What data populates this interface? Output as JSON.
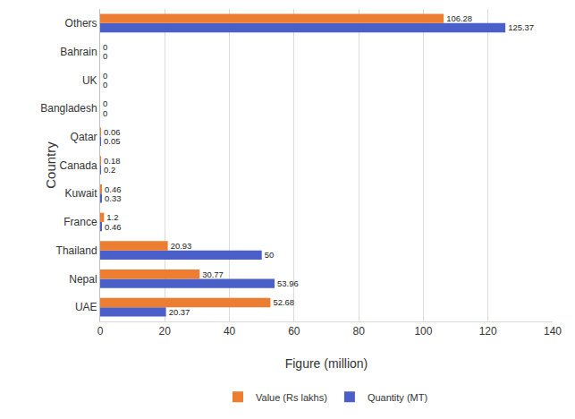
{
  "chart_data": {
    "type": "bar",
    "orientation": "horizontal",
    "x_label": "Figure (million)",
    "y_label": "Country",
    "categories": [
      "UAE",
      "Nepal",
      "Thailand",
      "France",
      "Kuwait",
      "Canada",
      "Qatar",
      "Bangladesh",
      "UK",
      "Bahrain",
      "Others"
    ],
    "series": [
      {
        "name": "Value (Rs lakhs)",
        "color": "#ED7D31",
        "values": [
          52.68,
          30.77,
          20.93,
          1.2,
          0.46,
          0.18,
          0.06,
          0,
          0,
          0,
          106.28
        ]
      },
      {
        "name": "Quantity (MT)",
        "color": "#4A5FC8",
        "values": [
          20.37,
          53.96,
          50,
          0.46,
          0.33,
          0.2,
          0.05,
          0,
          0,
          0,
          125.37
        ]
      }
    ],
    "xlim": [
      0,
      140
    ],
    "xticks": [
      0,
      20,
      40,
      60,
      80,
      100,
      120,
      140
    ],
    "grid": true,
    "legend": "bottom",
    "data_labels": true
  }
}
